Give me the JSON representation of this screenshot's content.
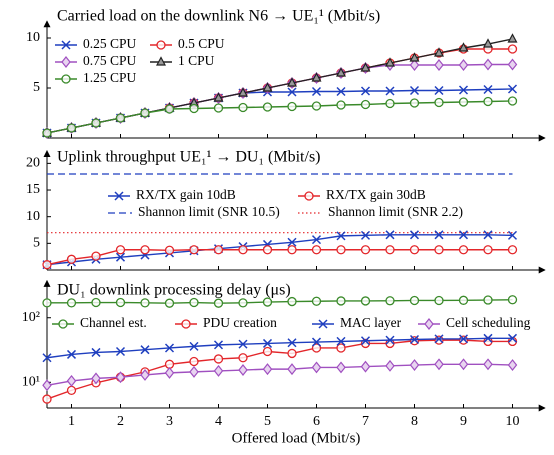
{
  "chart_data": [
    {
      "type": "line",
      "title": "Carried load on the downlink N6 → UE₁¹ (Mbit/s)",
      "x": [
        0.5,
        1,
        1.5,
        2,
        2.5,
        3,
        3.5,
        4,
        4.5,
        5,
        5.5,
        6,
        6.5,
        7,
        7.5,
        8,
        8.5,
        9,
        9.5,
        10
      ],
      "xlim": [
        0.5,
        10.5
      ],
      "xticks": [
        1,
        2,
        3,
        4,
        5,
        6,
        7,
        8,
        9,
        10
      ],
      "ylim": [
        0,
        11.5
      ],
      "yticks": [
        5,
        10
      ],
      "legend": "upper left",
      "series": [
        {
          "name": "0.25 CPU",
          "color": "#1f3fbf",
          "marker": "x",
          "values": [
            0.5,
            1,
            1.5,
            2,
            2.5,
            3,
            3.5,
            4,
            4.5,
            4.6,
            4.6,
            4.65,
            4.65,
            4.7,
            4.7,
            4.75,
            4.75,
            4.8,
            4.85,
            4.9
          ]
        },
        {
          "name": "0.5 CPU",
          "color": "#e3262a",
          "marker": "circle",
          "values": [
            0.5,
            1,
            1.5,
            2,
            2.5,
            3,
            3.5,
            4,
            4.5,
            5,
            5.5,
            6,
            6.5,
            7,
            7.5,
            8,
            8.5,
            8.9,
            8.9,
            8.9
          ]
        },
        {
          "name": "0.75 CPU",
          "color": "#a050c0",
          "marker": "diamond",
          "values": [
            0.5,
            1,
            1.5,
            2,
            2.5,
            3,
            3.5,
            4,
            4.5,
            5,
            5.5,
            6,
            6.5,
            7,
            7.3,
            7.3,
            7.3,
            7.3,
            7.35,
            7.35
          ]
        },
        {
          "name": "1 CPU",
          "color": "#222222",
          "marker": "triangle",
          "values": [
            0.5,
            1,
            1.5,
            2,
            2.5,
            3,
            3.5,
            4,
            4.5,
            5,
            5.5,
            6,
            6.5,
            7,
            7.5,
            8,
            8.5,
            9,
            9.4,
            9.9
          ]
        },
        {
          "name": "1.25 CPU",
          "color": "#3a8a2a",
          "marker": "circle",
          "values": [
            0.5,
            1,
            1.5,
            2,
            2.5,
            2.9,
            2.95,
            3,
            3.05,
            3.1,
            3.15,
            3.2,
            3.3,
            3.35,
            3.45,
            3.5,
            3.55,
            3.6,
            3.65,
            3.7
          ]
        }
      ]
    },
    {
      "type": "line",
      "title": "Uplink throughput UE₁¹ → DU₁ (Mbit/s)",
      "x": [
        0.5,
        1,
        1.5,
        2,
        2.5,
        3,
        3.5,
        4,
        4.5,
        5,
        5.5,
        6,
        6.5,
        7,
        7.5,
        8,
        8.5,
        9,
        9.5,
        10
      ],
      "xlim": [
        0.5,
        10.5
      ],
      "xticks": [
        1,
        2,
        3,
        4,
        5,
        6,
        7,
        8,
        9,
        10
      ],
      "ylim": [
        0,
        22
      ],
      "yticks": [
        5,
        10,
        15,
        20
      ],
      "legend": "center",
      "series": [
        {
          "name": "RX/TX gain 10dB",
          "color": "#1f3fbf",
          "marker": "x",
          "values": [
            1.0,
            1.5,
            2.0,
            2.4,
            2.8,
            3.2,
            3.6,
            4.0,
            4.4,
            4.8,
            5.2,
            5.7,
            6.4,
            6.5,
            6.6,
            6.6,
            6.6,
            6.6,
            6.6,
            6.5
          ]
        },
        {
          "name": "RX/TX gain 30dB",
          "color": "#e3262a",
          "marker": "circle",
          "values": [
            1.0,
            2.0,
            2.6,
            3.8,
            3.8,
            3.7,
            3.8,
            3.8,
            3.8,
            3.8,
            3.8,
            3.8,
            3.8,
            3.8,
            3.8,
            3.8,
            3.8,
            3.8,
            3.8,
            3.8
          ]
        }
      ],
      "hlines": [
        {
          "name": "Shannon limit (SNR 10.5)",
          "color": "#1f3fbf",
          "dash": "dashed",
          "value": 18
        },
        {
          "name": "Shannon limit (SNR 2.2)",
          "color": "#e3262a",
          "dash": "dotted",
          "value": 7
        }
      ]
    },
    {
      "type": "line",
      "title": "DU₁ downlink processing delay (μs)",
      "xlabel": "Offered load (Mbit/s)",
      "x": [
        0.5,
        1,
        1.5,
        2,
        2.5,
        3,
        3.5,
        4,
        4.5,
        5,
        5.5,
        6,
        6.5,
        7,
        7.5,
        8,
        8.5,
        9,
        9.5,
        10
      ],
      "xlim": [
        0.5,
        10.5
      ],
      "xticks": [
        1,
        2,
        3,
        4,
        5,
        6,
        7,
        8,
        9,
        10
      ],
      "ylim": [
        4,
        350
      ],
      "yscale": "log",
      "yticks": [
        {
          "value": 10,
          "label": "10¹"
        },
        {
          "value": 100,
          "label": "10²"
        }
      ],
      "legend": "upper center",
      "series": [
        {
          "name": "Channel est.",
          "color": "#3a8a2a",
          "marker": "circle",
          "values": [
            170,
            170,
            172,
            172,
            170,
            168,
            172,
            168,
            170,
            175,
            178,
            180,
            182,
            182,
            183,
            185,
            185,
            186,
            188,
            190
          ]
        },
        {
          "name": "PDU creation",
          "color": "#e3262a",
          "marker": "circle",
          "values": [
            5.5,
            7.5,
            9.8,
            12,
            14.5,
            19,
            21,
            23,
            24,
            30,
            28,
            34,
            34,
            40,
            40,
            44,
            45,
            45,
            43,
            43
          ]
        },
        {
          "name": "MAC layer",
          "color": "#1f3fbf",
          "marker": "x",
          "values": [
            24,
            27,
            29,
            30,
            32,
            34,
            36,
            38,
            39,
            40,
            41,
            42,
            43,
            44,
            45,
            46,
            47,
            47,
            48,
            48
          ]
        },
        {
          "name": "Cell scheduling",
          "color": "#a050c0",
          "marker": "diamond",
          "values": [
            9,
            10.5,
            11.5,
            12,
            13,
            14,
            14.5,
            15,
            15.5,
            16,
            16,
            17,
            17,
            17.5,
            18,
            18.5,
            19,
            19,
            19,
            18.5
          ]
        }
      ]
    }
  ]
}
